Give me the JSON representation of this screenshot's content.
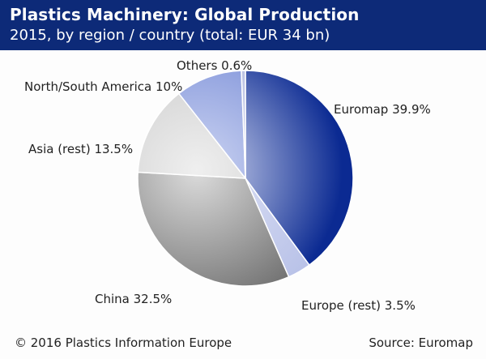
{
  "header": {
    "title": "Plastics Machinery: Global Production",
    "subtitle": "2015, by region / country (total: EUR 34 bn)"
  },
  "chart_data": {
    "type": "pie",
    "title": "Plastics Machinery: Global Production",
    "subtitle": "2015, by region / country (total: EUR 34 bn)",
    "slices": [
      {
        "label": "Euromap 39.9%",
        "value": 39.9,
        "color_dark": "#0b2a92",
        "color_light": "#d9def3"
      },
      {
        "label": "Europe (rest) 3.5%",
        "value": 3.5,
        "color_dark": "#b9c2e8",
        "color_light": "#dfe3f5"
      },
      {
        "label": "China 32.5%",
        "value": 32.5,
        "color_dark": "#6f6f6f",
        "color_light": "#dcdcdc"
      },
      {
        "label": "Asia (rest) 13.5%",
        "value": 13.5,
        "color_dark": "#c8c8c8",
        "color_light": "#efefef"
      },
      {
        "label": "North/South America 10%",
        "value": 10.0,
        "color_dark": "#7b8fd8",
        "color_light": "#cdd5f2"
      },
      {
        "label": "Others 0.6%",
        "value": 0.6,
        "color_dark": "#b0b8de",
        "color_light": "#e0e4f5"
      }
    ]
  },
  "footer": {
    "copyright": "© 2016 Plastics Information Europe",
    "source": "Source: Euromap"
  }
}
